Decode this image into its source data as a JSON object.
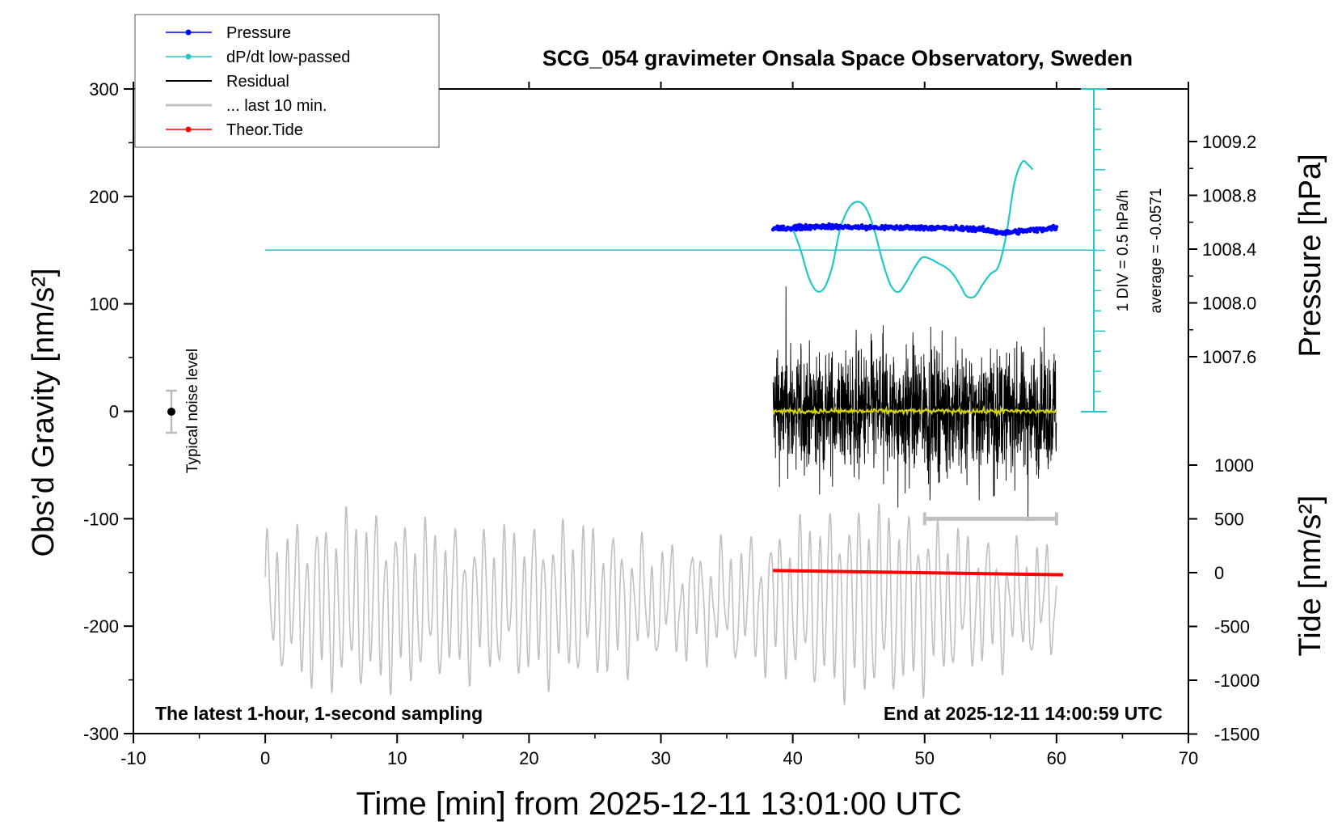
{
  "chart_data": {
    "type": "line",
    "title": "SCG_054 gravimeter Onsala Space Observatory, Sweden",
    "xlabel": "Time [min] from 2025-12-11 13:01:00 UTC",
    "ylabel_left": "Obs’d Gravity [nm/s²]",
    "ylabel_right_top": "Pressure [hPa]",
    "ylabel_right_bottom": "Tide [nm/s²]",
    "xlim": [
      -10,
      70
    ],
    "ylim_left": [
      -300,
      300
    ],
    "x_ticks": [
      "-10",
      "0",
      "10",
      "20",
      "30",
      "40",
      "50",
      "60",
      "70"
    ],
    "y_ticks_left": [
      "-300",
      "-200",
      "-100",
      "0",
      "100",
      "200",
      "300"
    ],
    "pressure_ticks": [
      "1009.2",
      "1008.8",
      "1008.4",
      "1008.0",
      "1007.6"
    ],
    "tide_ticks": [
      "1000",
      "500",
      "0",
      "-500",
      "-1000",
      "-1500"
    ],
    "bottom_left_note": "The latest 1-hour, 1-second sampling",
    "bottom_right_note": "End at 2025-12-11 14:00:59 UTC",
    "noise_label": "Typical noise level",
    "noise_level": 20,
    "dpdt_scale_label": "1 DIV = 0.5 hPa/h",
    "dpdt_average_label": "average = -0.0571",
    "legend": [
      "Pressure",
      "dP/dt low-passed",
      "Residual",
      "... last 10 min.",
      "Theor.Tide"
    ],
    "colors": {
      "pressure": "#0000ff",
      "dpdt": "#20c8c8",
      "residual": "#000000",
      "last10": "#c0c0c0",
      "tide": "#ff0000",
      "residual_smooth": "#d4d400"
    },
    "series": [
      {
        "name": "Pressure",
        "unit": "hPa",
        "x": [
          38.5,
          42,
          46,
          50,
          54,
          56,
          58,
          60
        ],
        "values": [
          1008.55,
          1008.57,
          1008.56,
          1008.56,
          1008.55,
          1008.52,
          1008.54,
          1008.56
        ]
      },
      {
        "name": "dP/dt low-passed",
        "unit": "gravity-axis nm/s² (plotted)",
        "x": [
          40.0,
          40.6,
          41.2,
          41.8,
          42.4,
          43.0,
          43.6,
          44.3,
          45.0,
          45.6,
          46.2,
          46.8,
          47.4,
          48.0,
          48.6,
          49.2,
          49.8,
          50.4,
          51.0,
          51.6,
          52.2,
          52.8,
          53.2,
          53.8,
          54.4,
          55.0,
          55.6,
          56.2,
          56.8,
          57.4,
          57.8,
          58.2
        ],
        "values": [
          170,
          150,
          125,
          112,
          115,
          135,
          170,
          190,
          195,
          188,
          168,
          140,
          118,
          111,
          120,
          133,
          143,
          142,
          138,
          134,
          127,
          115,
          107,
          107,
          118,
          128,
          135,
          165,
          212,
          232,
          230,
          225
        ]
      },
      {
        "name": "dP/dt zero line",
        "unit": "gravity-axis nm/s² (plotted)",
        "x": [
          0,
          63
        ],
        "values": [
          150,
          150
        ]
      },
      {
        "name": "Residual",
        "unit": "nm/s²",
        "x": [
          38.5,
          60
        ],
        "values": [
          0,
          0
        ],
        "amplitude": 70
      },
      {
        "name": "... last 10 min.",
        "unit": "nm/s²",
        "x": [
          50,
          60
        ],
        "values": [
          -100,
          -100
        ]
      },
      {
        "name": "Theor.Tide",
        "unit": "nm/s² (tide axis)",
        "x": [
          38.5,
          60.5
        ],
        "values": [
          20,
          -20
        ]
      }
    ]
  }
}
